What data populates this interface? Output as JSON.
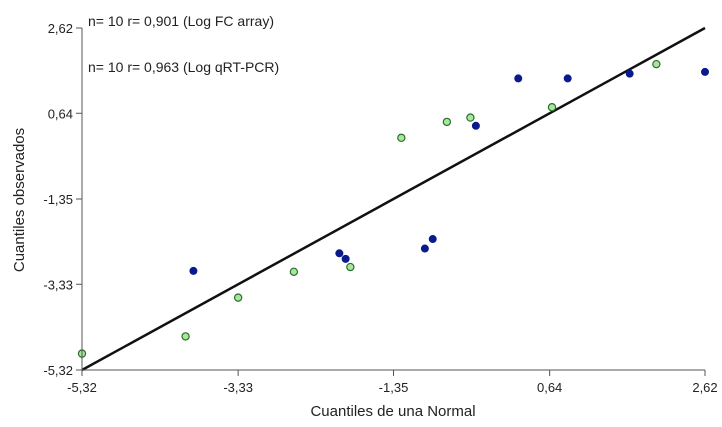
{
  "chart_data": {
    "type": "scatter",
    "xlabel": "Cuantiles de una Normal",
    "ylabel": "Cuantiles observados",
    "xlim": [
      -5.32,
      2.62
    ],
    "ylim": [
      -5.32,
      2.62
    ],
    "x_ticks": [
      -5.32,
      -3.33,
      -1.35,
      0.64,
      2.62
    ],
    "y_ticks": [
      -5.32,
      -3.33,
      -1.35,
      0.64,
      2.62
    ],
    "x_tick_labels": [
      "-5,32",
      "-3,33",
      "-1,35",
      "0,64",
      "2,62"
    ],
    "y_tick_labels": [
      "-5,32",
      "-3,33",
      "-1,35",
      "0,64",
      "2,62"
    ],
    "grid": false,
    "annotations": [
      "n= 10 r= 0,901 (Log FC array)",
      "n= 10 r= 0,963 (Log qRT-PCR)"
    ],
    "series": [
      {
        "color": "#0a1a8c",
        "fill": "#0a1a8c",
        "marker": "filled-circle",
        "x": [
          -3.9,
          -1.96,
          -2.04,
          -0.95,
          -0.85,
          -0.3,
          0.24,
          0.87,
          1.66,
          2.62
        ],
        "y": [
          -3.02,
          -2.74,
          -2.61,
          -2.5,
          -2.28,
          0.35,
          1.45,
          1.45,
          1.56,
          1.6
        ]
      },
      {
        "color": "#2a6e2a",
        "fill": "#a8e6a0",
        "marker": "ring",
        "x": [
          -5.32,
          -4.0,
          -3.33,
          -2.62,
          -1.9,
          -1.25,
          -0.67,
          -0.37,
          0.67,
          2.0
        ],
        "y": [
          -4.94,
          -4.54,
          -3.64,
          -3.04,
          -2.93,
          0.07,
          0.44,
          0.54,
          0.78,
          1.78
        ]
      }
    ],
    "reference_line": {
      "x": [
        -5.32,
        2.62
      ],
      "y": [
        -5.32,
        2.62
      ],
      "color": "#111111"
    }
  }
}
